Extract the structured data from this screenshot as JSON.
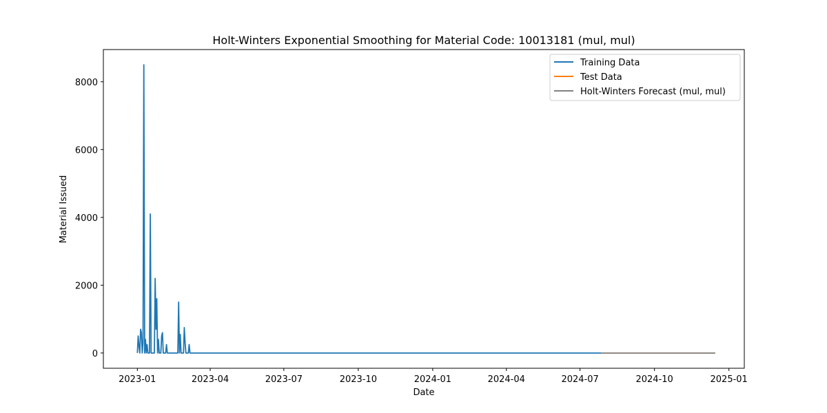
{
  "chart_data": {
    "type": "line",
    "title": "Holt-Winters Exponential Smoothing for Material Code: 10013181 (mul, mul)",
    "xlabel": "Date",
    "ylabel": "Material Issued",
    "xlim": [
      "2022-11-20",
      "2025-01-20"
    ],
    "ylim": [
      -450,
      8950
    ],
    "x_ticks": [
      {
        "date": "2023-01-01",
        "label": "2023-01"
      },
      {
        "date": "2023-04-01",
        "label": "2023-04"
      },
      {
        "date": "2023-07-01",
        "label": "2023-07"
      },
      {
        "date": "2023-10-01",
        "label": "2023-10"
      },
      {
        "date": "2024-01-01",
        "label": "2024-01"
      },
      {
        "date": "2024-04-01",
        "label": "2024-04"
      },
      {
        "date": "2024-07-01",
        "label": "2024-07"
      },
      {
        "date": "2024-10-01",
        "label": "2024-10"
      },
      {
        "date": "2025-01-01",
        "label": "2025-01"
      }
    ],
    "y_ticks": [
      {
        "value": 0,
        "label": "0"
      },
      {
        "value": 2000,
        "label": "2000"
      },
      {
        "value": 4000,
        "label": "4000"
      },
      {
        "value": 6000,
        "label": "6000"
      },
      {
        "value": 8000,
        "label": "8000"
      }
    ],
    "legend_position": "top-right",
    "series": [
      {
        "name": "Training Data",
        "color": "#1f77b4",
        "points": [
          [
            "2023-01-01",
            0
          ],
          [
            "2023-01-02",
            500
          ],
          [
            "2023-01-03",
            200
          ],
          [
            "2023-01-04",
            0
          ],
          [
            "2023-01-05",
            700
          ],
          [
            "2023-01-06",
            600
          ],
          [
            "2023-01-07",
            0
          ],
          [
            "2023-01-08",
            300
          ],
          [
            "2023-01-09",
            8500
          ],
          [
            "2023-01-10",
            0
          ],
          [
            "2023-01-11",
            400
          ],
          [
            "2023-01-12",
            0
          ],
          [
            "2023-01-13",
            250
          ],
          [
            "2023-01-14",
            0
          ],
          [
            "2023-01-16",
            0
          ],
          [
            "2023-01-17",
            4100
          ],
          [
            "2023-01-18",
            0
          ],
          [
            "2023-01-22",
            0
          ],
          [
            "2023-01-23",
            2200
          ],
          [
            "2023-01-24",
            700
          ],
          [
            "2023-01-25",
            1600
          ],
          [
            "2023-01-26",
            0
          ],
          [
            "2023-01-27",
            400
          ],
          [
            "2023-01-28",
            0
          ],
          [
            "2023-01-30",
            0
          ],
          [
            "2023-01-31",
            500
          ],
          [
            "2023-02-01",
            600
          ],
          [
            "2023-02-02",
            0
          ],
          [
            "2023-02-05",
            0
          ],
          [
            "2023-02-06",
            250
          ],
          [
            "2023-02-07",
            0
          ],
          [
            "2023-02-20",
            0
          ],
          [
            "2023-02-21",
            1500
          ],
          [
            "2023-02-22",
            0
          ],
          [
            "2023-02-23",
            550
          ],
          [
            "2023-02-24",
            0
          ],
          [
            "2023-02-27",
            0
          ],
          [
            "2023-02-28",
            750
          ],
          [
            "2023-03-01",
            300
          ],
          [
            "2023-03-02",
            0
          ],
          [
            "2023-03-05",
            0
          ],
          [
            "2023-03-06",
            250
          ],
          [
            "2023-03-07",
            0
          ],
          [
            "2024-07-27",
            0
          ]
        ]
      },
      {
        "name": "Test Data",
        "color": "#ff7f0e",
        "points": [
          [
            "2024-07-27",
            0
          ],
          [
            "2024-12-15",
            0
          ]
        ]
      },
      {
        "name": "Holt-Winters Forecast (mul, mul)",
        "color": "#808080",
        "points": [
          [
            "2024-07-27",
            0
          ],
          [
            "2024-12-15",
            0
          ]
        ]
      }
    ]
  }
}
